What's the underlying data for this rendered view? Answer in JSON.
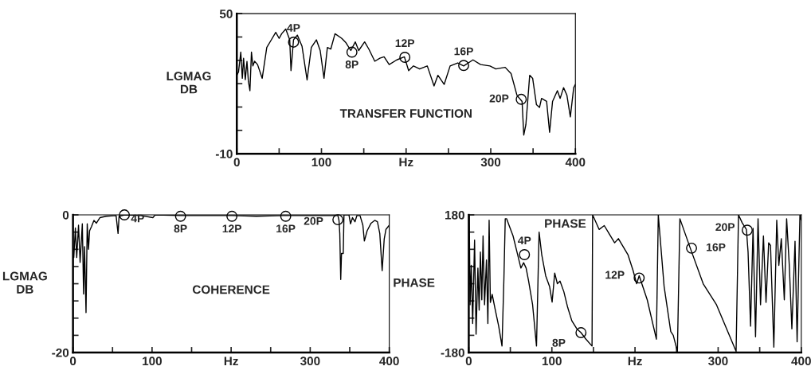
{
  "chart_data": [
    {
      "type": "line",
      "ylabel": "LGMAG\nDB",
      "color": "#000000",
      "x": [
        0,
        2,
        4.7,
        6.5,
        8,
        10,
        12,
        13.7,
        15.5,
        17.3,
        19,
        21,
        24.5,
        30,
        35.4,
        40.8,
        46,
        50,
        53,
        57.8,
        62.5,
        64,
        67,
        71.5,
        77,
        83,
        88,
        94,
        98.5,
        103,
        107,
        111,
        116,
        124,
        129,
        134.7,
        140,
        144,
        151,
        156,
        163,
        169,
        174,
        180,
        189,
        198,
        203,
        208.7,
        216,
        225,
        233,
        237.6,
        245,
        252,
        261,
        268,
        279,
        288,
        299,
        306,
        317,
        324,
        331,
        337,
        339,
        341.5,
        346,
        349.5,
        354,
        357.6,
        360,
        366,
        369.5,
        373,
        378.7,
        382,
        386,
        390,
        394,
        398,
        400
      ],
      "values": [
        23.6,
        25,
        33.5,
        22.3,
        30.9,
        21.7,
        29.5,
        21,
        17,
        33.5,
        27.6,
        29.6,
        28.2,
        22.3,
        35.5,
        38.8,
        42,
        39.4,
        41.4,
        43.4,
        38.8,
        25.6,
        38.8,
        40.8,
        36.1,
        21.6,
        35.5,
        38.8,
        34.2,
        22.3,
        35.5,
        34.8,
        41.4,
        39.4,
        37.5,
        34.2,
        37.9,
        34.2,
        37.9,
        34.8,
        29.6,
        30.9,
        31.5,
        28.2,
        30.2,
        31.5,
        25.6,
        27.6,
        26.3,
        27.6,
        19,
        23.6,
        19.7,
        27.6,
        28.9,
        27.6,
        30.2,
        28.2,
        27.6,
        26.3,
        27,
        24.3,
        15,
        12.4,
        -2,
        2.5,
        23.6,
        22.3,
        11,
        9.8,
        13.7,
        12.4,
        -0.8,
        12.4,
        17,
        13.7,
        18.3,
        15,
        5.8,
        18.3,
        19.7
      ],
      "xlim": [
        0,
        400
      ],
      "ylim": [
        -10,
        50
      ],
      "xticks": [
        0,
        {
          "value": 50,
          "label": null
        },
        100,
        {
          "value": 150,
          "label": null
        },
        {
          "value": 200,
          "label": "Hz"
        },
        {
          "value": 250,
          "label": null
        },
        300,
        {
          "value": 350,
          "label": null
        },
        400
      ],
      "yticks": [
        -10,
        {
          "value": 0,
          "label": null
        },
        {
          "value": 10,
          "label": null
        },
        {
          "value": 20,
          "label": null
        },
        {
          "value": 30,
          "label": null
        },
        {
          "value": 40,
          "label": null
        },
        50
      ],
      "annotations": [
        {
          "text": "4P",
          "x": 67,
          "y": 37.8
        },
        {
          "text": "8P",
          "x": 136,
          "y": 33.5
        },
        {
          "text": "12P",
          "x": 198.5,
          "y": 31.3
        },
        {
          "text": "16P",
          "x": 268,
          "y": 27.8
        },
        {
          "text": "20P",
          "x": 336,
          "y": 13.3
        },
        "TRANSFER FUNCTION"
      ]
    },
    {
      "type": "line",
      "ylabel": "LGMAG\nDB",
      "color": "#000000",
      "x": [
        1,
        3,
        4.7,
        7,
        9,
        11.8,
        13.4,
        14.6,
        16.5,
        18,
        19.6,
        21,
        23.4,
        26.5,
        29.6,
        34,
        42,
        54.5,
        57,
        58.3,
        65.4,
        86,
        101,
        104,
        135.5,
        201,
        232,
        266,
        335,
        336.4,
        337.4,
        338.6,
        339.6,
        341.8,
        342.7,
        349,
        351,
        353.5,
        356.6,
        359,
        363,
        366.6,
        368.5,
        372,
        377,
        381.6,
        385,
        388,
        391,
        393.6,
        395.8,
        400
      ],
      "values": [
        -6.2,
        -1.9,
        -6.2,
        -1.5,
        -6.9,
        -1.3,
        -11.5,
        -4.6,
        -14.2,
        -1.3,
        -5,
        -2.3,
        -1.7,
        -0.8,
        -1.2,
        -0.4,
        -0.2,
        -0.1,
        -2.7,
        -0.2,
        0,
        -0.1,
        -0.4,
        0,
        -0.1,
        -0.1,
        -0.2,
        -0.1,
        -0.1,
        -0.8,
        -2.7,
        -9.4,
        -5.6,
        -5.6,
        0,
        0,
        -1.3,
        -0.4,
        -1,
        -0.1,
        -0.1,
        -1.5,
        -3.8,
        -2.3,
        -1.2,
        -0.8,
        -1,
        -2.7,
        -8.1,
        -3.5,
        -2.1,
        -1.5
      ],
      "xlim": [
        0,
        400
      ],
      "ylim": [
        -20,
        0
      ],
      "xticks": [
        0,
        {
          "value": 50,
          "label": null
        },
        100,
        {
          "value": 150,
          "label": null
        },
        {
          "value": 200,
          "label": "Hz"
        },
        {
          "value": 250,
          "label": null
        },
        300,
        {
          "value": 350,
          "label": null
        },
        400
      ],
      "yticks": [
        -20,
        {
          "value": -17.5,
          "label": null
        },
        {
          "value": -15,
          "label": null
        },
        {
          "value": -12.5,
          "label": null
        },
        {
          "value": -10,
          "label": null
        },
        {
          "value": -7.5,
          "label": null
        },
        {
          "value": -5,
          "label": null
        },
        {
          "value": -2.5,
          "label": null
        },
        0
      ],
      "annotations": [
        {
          "text": "4P",
          "x": 65,
          "y": 0
        },
        {
          "text": "8P",
          "x": 136,
          "y": -0.2
        },
        {
          "text": "12P",
          "x": 201,
          "y": -0.2
        },
        {
          "text": "16P",
          "x": 269,
          "y": -0.2
        },
        {
          "text": "20P",
          "x": 335,
          "y": -0.7
        },
        "COHERENCE"
      ]
    },
    {
      "type": "line",
      "ylabel": "PHASE",
      "color": "#000000",
      "x": [
        0.6,
        1.6,
        3,
        4.7,
        7,
        8.8,
        11,
        12.5,
        14,
        15.7,
        17.2,
        19,
        21.3,
        23,
        24.5,
        26,
        28.2,
        31.3,
        36,
        40,
        42.3,
        43.9,
        45.5,
        48.6,
        53.3,
        58,
        62.7,
        66,
        69,
        72,
        76.8,
        81.5,
        84.6,
        87.8,
        92.5,
        97.2,
        100.3,
        103.4,
        106.6,
        109.8,
        114.4,
        119,
        124,
        130,
        135,
        141,
        148.3,
        149,
        156.8,
        163,
        175.5,
        180,
        191.5,
        197.6,
        202,
        205,
        214.7,
        225.7,
        228,
        235,
        243,
        246,
        251,
        254,
        266.5,
        282,
        298,
        321.6,
        324.5,
        329,
        334,
        336,
        339,
        342,
        345,
        348,
        351,
        354.5,
        357.6,
        360.8,
        363,
        367,
        370.5,
        373,
        376,
        379.6,
        382.4,
        385.6,
        388.7,
        392.5,
        395,
        398.4,
        400
      ],
      "values": [
        180,
        -55,
        48,
        -104,
        114,
        -132,
        41,
        -69,
        83,
        -42,
        125,
        -55,
        62,
        -104,
        166,
        -49,
        -28,
        -62,
        -111,
        -163,
        14,
        170,
        170,
        152,
        125,
        83,
        41,
        55,
        41,
        7,
        -55,
        -163,
        135,
        76,
        21,
        -7,
        -48,
        28,
        0,
        7,
        -21,
        -62,
        -97,
        -118,
        -128,
        -145,
        -163,
        180,
        142,
        152,
        107,
        118,
        76,
        35,
        0,
        21,
        -42,
        -145,
        180,
        -7,
        -125,
        -135,
        -177,
        170,
        93,
        0,
        -55,
        -177,
        180,
        159,
        142,
        83,
        -111,
        145,
        -139,
        170,
        -55,
        125,
        -49,
        107,
        100,
        -166,
        166,
        48,
        118,
        -42,
        170,
        48,
        -118,
        111,
        -152,
        180,
        166
      ],
      "xlim": [
        0,
        400
      ],
      "ylim": [
        -180,
        180
      ],
      "xticks": [
        0,
        {
          "value": 50,
          "label": null
        },
        100,
        {
          "value": 150,
          "label": null
        },
        {
          "value": 200,
          "label": "Hz"
        },
        {
          "value": 250,
          "label": null
        },
        300,
        {
          "value": 350,
          "label": null
        },
        400
      ],
      "yticks": [
        -180,
        {
          "value": -135,
          "label": null
        },
        {
          "value": -90,
          "label": null
        },
        {
          "value": -45,
          "label": null
        },
        {
          "value": 0,
          "label": null
        },
        {
          "value": 45,
          "label": null
        },
        {
          "value": 90,
          "label": null
        },
        {
          "value": 135,
          "label": null
        },
        180
      ],
      "annotations": [
        {
          "text": "4P",
          "x": 67,
          "y": 76
        },
        {
          "text": "8P",
          "x": 135,
          "y": -128
        },
        {
          "text": "12P",
          "x": 205,
          "y": 15
        },
        {
          "text": "16P",
          "x": 268,
          "y": 93
        },
        {
          "text": "20P",
          "x": 335,
          "y": 140
        },
        "PHASE"
      ]
    }
  ]
}
